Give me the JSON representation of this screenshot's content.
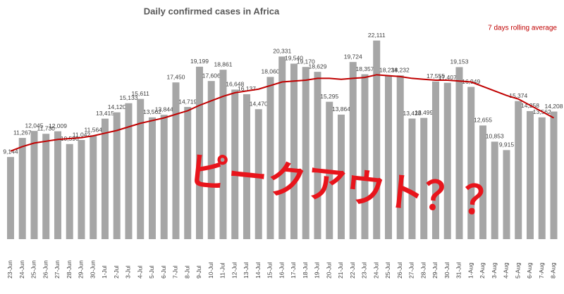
{
  "chart_data": {
    "type": "bar",
    "title": "Daily confirmed cases in Africa",
    "annotation": "ピークアウト？？",
    "categories": [
      "23-Jun",
      "24-Jun",
      "25-Jun",
      "26-Jun",
      "27-Jun",
      "28-Jun",
      "29-Jun",
      "30-Jun",
      "1-Jul",
      "2-Jul",
      "3-Jul",
      "4-Jul",
      "5-Jul",
      "6-Jul",
      "7-Jul",
      "8-Jul",
      "9-Jul",
      "10-Jul",
      "11-Jul",
      "12-Jul",
      "13-Jul",
      "14-Jul",
      "15-Jul",
      "16-Jul",
      "17-Jul",
      "18-Jul",
      "19-Jul",
      "20-Jul",
      "21-Jul",
      "22-Jul",
      "23-Jul",
      "24-Jul",
      "25-Jul",
      "26-Jul",
      "27-Jul",
      "28-Jul",
      "29-Jul",
      "30-Jul",
      "31-Jul",
      "1-Aug",
      "2-Aug",
      "3-Aug",
      "4-Aug",
      "5-Aug",
      "6-Aug",
      "7-Aug",
      "8-Aug"
    ],
    "series": [
      {
        "name": "Daily confirmed cases",
        "color": "#a6a6a6",
        "values": [
          9144,
          11267,
          12045,
          11730,
          12009,
          10590,
          11042,
          11564,
          13415,
          14120,
          15133,
          15611,
          13562,
          13844,
          17450,
          14719,
          19199,
          17606,
          18861,
          16648,
          16137,
          14470,
          18060,
          20331,
          19540,
          19170,
          18629,
          15295,
          13864,
          19724,
          18357,
          22111,
          18234,
          18232,
          13428,
          13499,
          17555,
          17407,
          19153,
          16949,
          12655,
          10853,
          9915,
          15374,
          14258,
          13562,
          14208
        ],
        "value_labels": [
          "9,144",
          "11,267",
          "12,045",
          "11,730",
          "12,009",
          "10,590",
          "11,042",
          "11,564",
          "13,415",
          "14,120",
          "15,133",
          "15,611",
          "13,562",
          "13,844",
          "17,450",
          "14,719",
          "19,199",
          "17,606",
          "18,861",
          "16,648",
          "16,137",
          "14,470",
          "18,060",
          "20,331",
          "19,540",
          "19,170",
          "18,629",
          "15,295",
          "13,864",
          "19,724",
          "18,357",
          "22,111",
          "18,234",
          "18,232",
          "13,428",
          "13,499",
          "17,555",
          "17,407",
          "19,153",
          "16,949",
          "12,655",
          "10,853",
          "9,915",
          "15,374",
          "14,258",
          "13,562",
          "14,208"
        ]
      },
      {
        "name": "7 days rolling average",
        "color": "#c00000",
        "type": "line",
        "values": [
          9800,
          10300,
          10700,
          10900,
          11100,
          11200,
          11300,
          11500,
          11800,
          12100,
          12500,
          12900,
          13200,
          13500,
          13900,
          14300,
          14900,
          15400,
          15900,
          16300,
          16500,
          16700,
          17100,
          17500,
          17600,
          17700,
          17900,
          17900,
          17800,
          17900,
          18000,
          18300,
          18200,
          18100,
          17900,
          17800,
          17700,
          17700,
          17600,
          17500,
          17000,
          16500,
          16000,
          15600,
          14900,
          14200,
          13500
        ]
      }
    ],
    "ylim": [
      0,
      26000
    ]
  }
}
